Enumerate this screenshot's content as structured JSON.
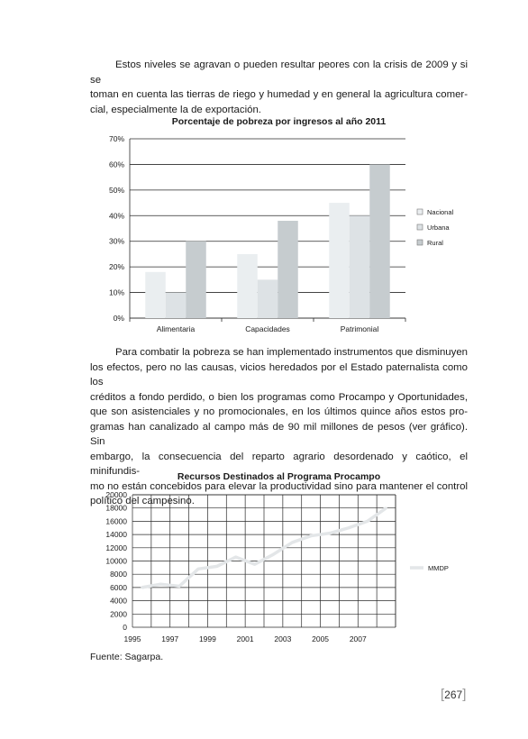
{
  "paragraph1": [
    "Estos niveles se agravan o pueden resultar peores con la crisis de 2009 y si se",
    "toman en cuenta las tierras de riego y humedad y en general la agricultura comer-",
    "cial, especialmente la de exportación."
  ],
  "paragraph2": [
    "Para combatir la pobreza se han implementado instrumentos que disminuyen",
    "los efectos, pero no las causas, vicios heredados por el Estado paternalista como los",
    "créditos a fondo perdido, o bien los programas como Procampo y Oportunidades,",
    "que son asistenciales y no promocionales, en los últimos quince años estos pro-",
    "gramas han canalizado al campo más de 90 mil millones de pesos (ver gráfico). Sin",
    "embargo, la consecuencia del reparto agrario desordenado y caótico, el minifundis-",
    "mo no están concebidos para elevar la productividad sino para mantener el control",
    "político del campesino."
  ],
  "source": "Fuente: Sagarpa.",
  "page_number": "267",
  "chart_data": [
    {
      "type": "bar",
      "title": "Porcentaje de pobreza por ingresos al año 2011",
      "categories": [
        "Alimentaria",
        "Capacidades",
        "Patrimonial"
      ],
      "series": [
        {
          "name": "Nacional",
          "values": [
            18,
            25,
            45
          ],
          "color": "#eaeef0"
        },
        {
          "name": "Urbana",
          "values": [
            10,
            15,
            40
          ],
          "color": "#dde2e5"
        },
        {
          "name": "Rural",
          "values": [
            30,
            38,
            60
          ],
          "color": "#c6cccf"
        }
      ],
      "ylim": [
        0,
        70
      ],
      "yticks": [
        "0%",
        "10%",
        "20%",
        "30%",
        "40%",
        "50%",
        "60%",
        "70%"
      ],
      "grid": true,
      "legend": "right"
    },
    {
      "type": "line",
      "title": "Recursos Destinados al Programa Procampo",
      "x": [
        1995,
        1996,
        1997,
        1998,
        1999,
        2000,
        2001,
        2002,
        2003,
        2004,
        2005,
        2006,
        2007,
        2008
      ],
      "series": [
        {
          "name": "MMDP",
          "values": [
            6000,
            6500,
            6200,
            8800,
            9200,
            10600,
            9500,
            11000,
            12800,
            13800,
            14200,
            15000,
            16000,
            18000
          ],
          "color": "#e3e6e8"
        }
      ],
      "xticks": [
        "1995",
        "1997",
        "1999",
        "2001",
        "2003",
        "2005",
        "2007"
      ],
      "ylim": [
        0,
        20000
      ],
      "yticks": [
        "0",
        "2000",
        "4000",
        "6000",
        "8000",
        "10000",
        "12000",
        "14000",
        "16000",
        "18000",
        "20000"
      ],
      "grid": true,
      "legend": "right"
    }
  ]
}
